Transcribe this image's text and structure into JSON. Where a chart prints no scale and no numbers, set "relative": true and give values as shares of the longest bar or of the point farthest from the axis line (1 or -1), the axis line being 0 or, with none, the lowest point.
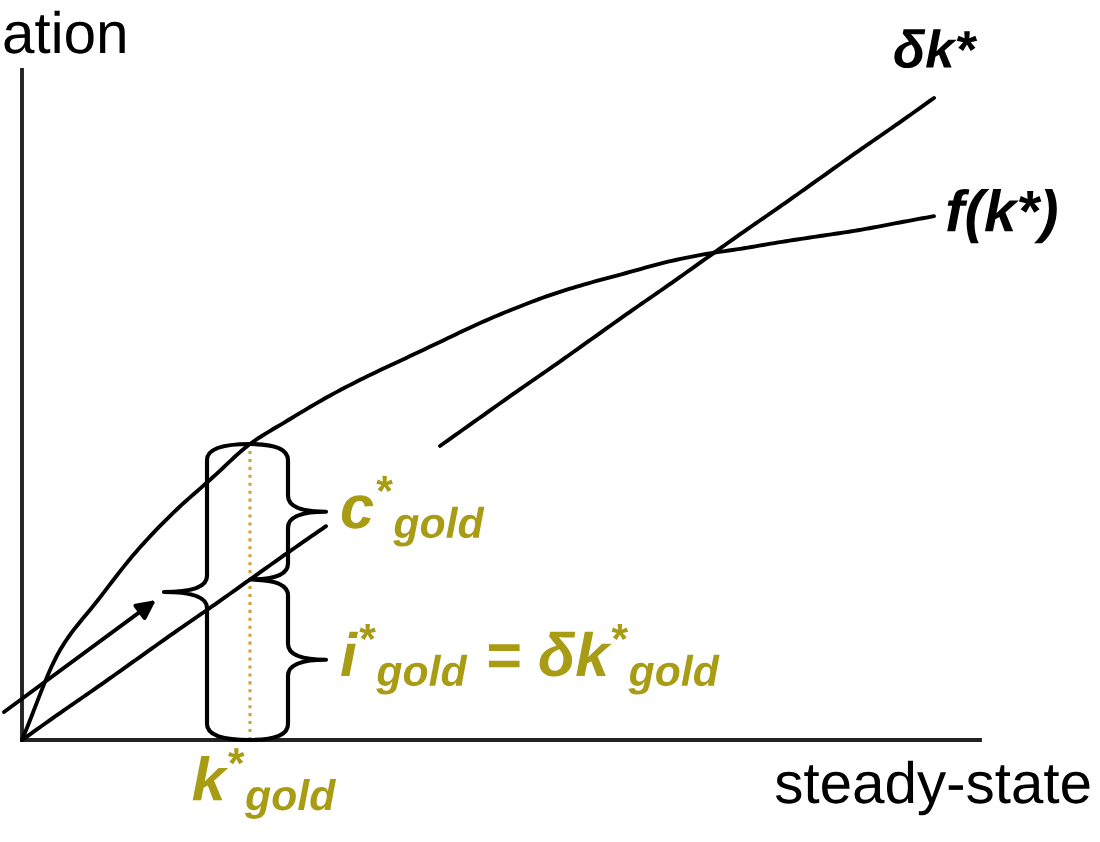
{
  "chart_data": {
    "type": "line",
    "relative": true,
    "ylabel": "ation",
    "xlabel": "steady-state",
    "categories": [
      null,
      null,
      null,
      null,
      null,
      null,
      null,
      null,
      null,
      null,
      null,
      null,
      null,
      null,
      null,
      null,
      null,
      null,
      null,
      null,
      null,
      null,
      null,
      null,
      null
    ],
    "series": [
      {
        "name": "f(k*)",
        "color": "#000000",
        "values": [
          0,
          0.14,
          0.218,
          0.293,
          0.355,
          0.408,
          0.461,
          0.498,
          0.533,
          0.564,
          0.592,
          0.62,
          0.648,
          0.673,
          0.695,
          0.713,
          0.729,
          0.745,
          0.757,
          0.766,
          0.776,
          0.785,
          0.794,
          0.805,
          0.816
        ]
      },
      {
        "name": "δk*",
        "color": "#000000",
        "values": [
          0,
          0.042,
          0.083,
          0.125,
          0.167,
          0.208,
          0.25,
          0.292,
          0.333,
          null,
          null,
          0.458,
          0.5,
          0.542,
          0.583,
          0.625,
          0.667,
          0.708,
          0.75,
          0.792,
          0.833,
          0.875,
          0.917,
          0.958,
          1
        ]
      }
    ],
    "annotations": [
      "c$^{*}$$_{gold}$",
      "i$^{*}$$_{gold}$ = δk$^{*}$$_{gold}$",
      "k$^{*}$$_{gold}$"
    ]
  }
}
